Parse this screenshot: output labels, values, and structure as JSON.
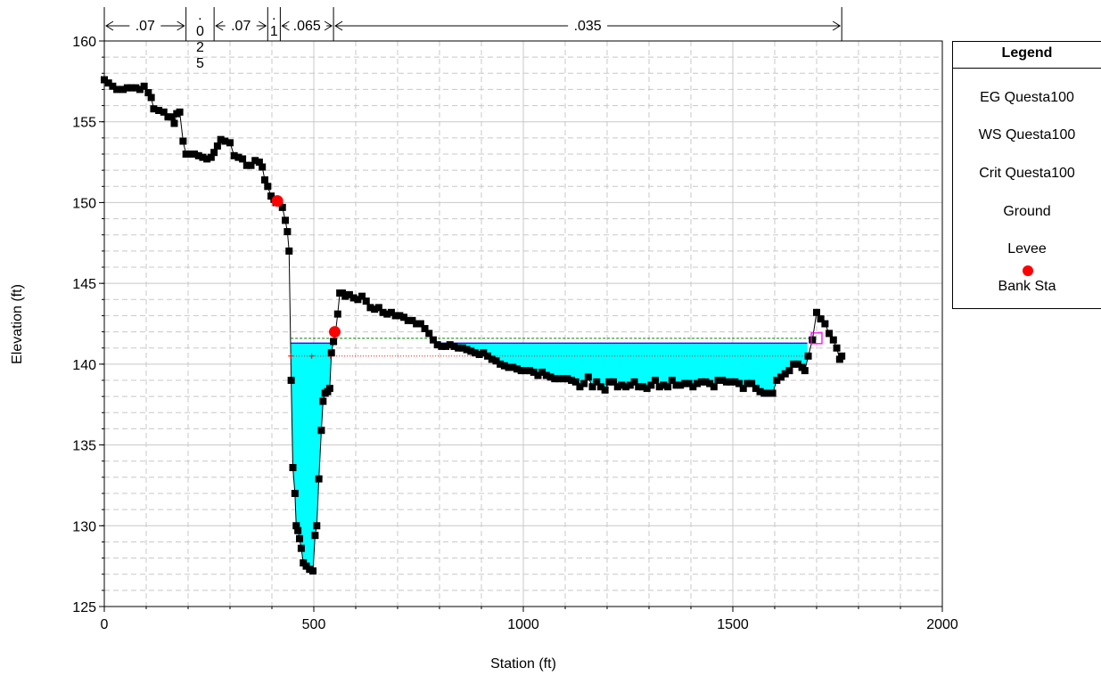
{
  "chart_data": {
    "type": "line",
    "title": "",
    "xlabel": "Station (ft)",
    "ylabel": "Elevation (ft)",
    "xlim": [
      0,
      2000
    ],
    "ylim": [
      125,
      160
    ],
    "x_ticks": [
      "0",
      "500",
      "1000",
      "1500",
      "2000"
    ],
    "y_ticks": [
      "125",
      "130",
      "135",
      "140",
      "145",
      "150",
      "155",
      "160"
    ],
    "grid": true,
    "legend_position": "right",
    "ground": [
      [
        0,
        157.6
      ],
      [
        10,
        157.4
      ],
      [
        20,
        157.2
      ],
      [
        30,
        157.0
      ],
      [
        45,
        157.0
      ],
      [
        55,
        157.1
      ],
      [
        65,
        157.1
      ],
      [
        75,
        157.1
      ],
      [
        85,
        157.0
      ],
      [
        95,
        157.2
      ],
      [
        105,
        156.8
      ],
      [
        112,
        156.5
      ],
      [
        118,
        155.8
      ],
      [
        130,
        155.7
      ],
      [
        142,
        155.6
      ],
      [
        152,
        155.3
      ],
      [
        160,
        155.3
      ],
      [
        167,
        154.9
      ],
      [
        173,
        155.5
      ],
      [
        180,
        155.6
      ],
      [
        188,
        153.8
      ],
      [
        195,
        153.0
      ],
      [
        205,
        153.0
      ],
      [
        215,
        153.0
      ],
      [
        225,
        152.9
      ],
      [
        235,
        152.8
      ],
      [
        245,
        152.7
      ],
      [
        255,
        152.8
      ],
      [
        262,
        153.1
      ],
      [
        270,
        153.5
      ],
      [
        278,
        153.9
      ],
      [
        288,
        153.8
      ],
      [
        300,
        153.7
      ],
      [
        310,
        152.9
      ],
      [
        320,
        152.8
      ],
      [
        330,
        152.7
      ],
      [
        340,
        152.3
      ],
      [
        350,
        152.3
      ],
      [
        360,
        152.6
      ],
      [
        370,
        152.5
      ],
      [
        377,
        152.2
      ],
      [
        383,
        151.4
      ],
      [
        390,
        151.0
      ],
      [
        398,
        150.4
      ],
      [
        405,
        150.2
      ],
      [
        410,
        150.0
      ],
      [
        418,
        150.0
      ],
      [
        425,
        149.7
      ],
      [
        432,
        148.9
      ],
      [
        437,
        148.2
      ],
      [
        441,
        147.0
      ],
      [
        446,
        139.0
      ],
      [
        450,
        133.6
      ],
      [
        455,
        132.0
      ],
      [
        458,
        130.0
      ],
      [
        462,
        129.7
      ],
      [
        466,
        129.2
      ],
      [
        470,
        128.6
      ],
      [
        475,
        127.7
      ],
      [
        482,
        127.5
      ],
      [
        490,
        127.3
      ],
      [
        498,
        127.2
      ],
      [
        503,
        129.4
      ],
      [
        507,
        130.0
      ],
      [
        512,
        132.9
      ],
      [
        518,
        135.9
      ],
      [
        522,
        137.7
      ],
      [
        527,
        138.2
      ],
      [
        533,
        138.3
      ],
      [
        538,
        138.5
      ],
      [
        542,
        140.7
      ],
      [
        547,
        141.4
      ],
      [
        552,
        142.0
      ],
      [
        557,
        143.1
      ],
      [
        562,
        144.4
      ],
      [
        568,
        144.4
      ],
      [
        575,
        144.2
      ],
      [
        585,
        144.3
      ],
      [
        595,
        144.1
      ],
      [
        605,
        144.0
      ],
      [
        615,
        144.2
      ],
      [
        625,
        143.9
      ],
      [
        635,
        143.5
      ],
      [
        645,
        143.4
      ],
      [
        655,
        143.5
      ],
      [
        665,
        143.2
      ],
      [
        675,
        143.1
      ],
      [
        685,
        143.2
      ],
      [
        695,
        143.0
      ],
      [
        705,
        143.0
      ],
      [
        715,
        142.9
      ],
      [
        725,
        142.7
      ],
      [
        735,
        142.7
      ],
      [
        745,
        142.5
      ],
      [
        755,
        142.5
      ],
      [
        765,
        142.2
      ],
      [
        775,
        141.9
      ],
      [
        785,
        141.5
      ],
      [
        795,
        141.2
      ],
      [
        805,
        141.1
      ],
      [
        815,
        141.1
      ],
      [
        825,
        141.2
      ],
      [
        835,
        141.1
      ],
      [
        845,
        141.0
      ],
      [
        855,
        141.0
      ],
      [
        865,
        140.9
      ],
      [
        875,
        140.8
      ],
      [
        885,
        140.7
      ],
      [
        895,
        140.6
      ],
      [
        905,
        140.7
      ],
      [
        915,
        140.5
      ],
      [
        925,
        140.3
      ],
      [
        935,
        140.2
      ],
      [
        945,
        140.0
      ],
      [
        955,
        139.9
      ],
      [
        965,
        139.8
      ],
      [
        975,
        139.8
      ],
      [
        985,
        139.7
      ],
      [
        995,
        139.6
      ],
      [
        1005,
        139.6
      ],
      [
        1015,
        139.6
      ],
      [
        1025,
        139.5
      ],
      [
        1035,
        139.3
      ],
      [
        1045,
        139.5
      ],
      [
        1055,
        139.3
      ],
      [
        1065,
        139.2
      ],
      [
        1075,
        139.1
      ],
      [
        1085,
        139.1
      ],
      [
        1095,
        139.1
      ],
      [
        1105,
        139.1
      ],
      [
        1115,
        139.0
      ],
      [
        1125,
        138.9
      ],
      [
        1135,
        138.6
      ],
      [
        1145,
        138.8
      ],
      [
        1155,
        139.2
      ],
      [
        1165,
        138.6
      ],
      [
        1175,
        138.9
      ],
      [
        1185,
        138.6
      ],
      [
        1195,
        138.4
      ],
      [
        1205,
        138.9
      ],
      [
        1215,
        138.9
      ],
      [
        1225,
        138.6
      ],
      [
        1235,
        138.7
      ],
      [
        1245,
        138.6
      ],
      [
        1255,
        138.7
      ],
      [
        1265,
        138.9
      ],
      [
        1275,
        138.6
      ],
      [
        1285,
        138.6
      ],
      [
        1295,
        138.5
      ],
      [
        1305,
        138.7
      ],
      [
        1315,
        139.0
      ],
      [
        1325,
        138.6
      ],
      [
        1335,
        138.7
      ],
      [
        1345,
        138.6
      ],
      [
        1355,
        139.0
      ],
      [
        1365,
        138.7
      ],
      [
        1375,
        138.7
      ],
      [
        1385,
        138.8
      ],
      [
        1395,
        138.8
      ],
      [
        1405,
        138.6
      ],
      [
        1415,
        138.8
      ],
      [
        1425,
        138.9
      ],
      [
        1435,
        138.9
      ],
      [
        1445,
        138.8
      ],
      [
        1455,
        138.6
      ],
      [
        1465,
        139.0
      ],
      [
        1475,
        139.0
      ],
      [
        1485,
        138.9
      ],
      [
        1495,
        138.9
      ],
      [
        1505,
        138.9
      ],
      [
        1515,
        138.8
      ],
      [
        1525,
        138.5
      ],
      [
        1535,
        138.8
      ],
      [
        1545,
        138.8
      ],
      [
        1555,
        138.5
      ],
      [
        1565,
        138.3
      ],
      [
        1575,
        138.2
      ],
      [
        1585,
        138.2
      ],
      [
        1595,
        138.2
      ],
      [
        1605,
        139.0
      ],
      [
        1615,
        139.2
      ],
      [
        1625,
        139.4
      ],
      [
        1635,
        139.6
      ],
      [
        1645,
        140.0
      ],
      [
        1655,
        140.0
      ],
      [
        1665,
        139.8
      ],
      [
        1672,
        139.6
      ],
      [
        1680,
        140.5
      ],
      [
        1690,
        141.5
      ],
      [
        1700,
        143.2
      ],
      [
        1710,
        142.8
      ],
      [
        1720,
        142.5
      ],
      [
        1730,
        141.9
      ],
      [
        1740,
        141.5
      ],
      [
        1748,
        141.0
      ],
      [
        1755,
        140.3
      ],
      [
        1760,
        140.5
      ]
    ],
    "water_surface": {
      "name": "WS Questa100",
      "elevation": 141.3,
      "wetted_reaches": [
        [
          445,
          547
        ],
        [
          795,
          1678
        ]
      ]
    },
    "energy_grade": {
      "name": "EG Questa100",
      "elevation": 141.6,
      "x_range": [
        445,
        1700
      ]
    },
    "critical": {
      "name": "Crit Questa100",
      "elevation": 140.5,
      "x_range": [
        445,
        1678
      ],
      "markers": [
        [
          445,
          140.5
        ],
        [
          495,
          140.5
        ],
        [
          540,
          140.5
        ],
        [
          910,
          140.5
        ],
        [
          1678,
          140.5
        ]
      ]
    },
    "bank_stations": [
      [
        413,
        150.1
      ],
      [
        550,
        142.0
      ]
    ],
    "levee": [
      [
        1700,
        141.6
      ]
    ],
    "manning_n": [
      {
        "label": ".07",
        "from": 0,
        "to": 195
      },
      {
        "label": ".025",
        "from": 195,
        "to": 262
      },
      {
        "label": ".07",
        "from": 262,
        "to": 390
      },
      {
        "label": ".1",
        "from": 390,
        "to": 420
      },
      {
        "label": ".065",
        "from": 420,
        "to": 547
      },
      {
        "label": ".035",
        "from": 547,
        "to": 1760
      }
    ],
    "colors": {
      "water_fill": "#00ffff",
      "ws_line": "#0000ff",
      "eg_line": "#008000",
      "crit_line": "#ff0000",
      "ground": "#000000",
      "levee": "#ff00ff",
      "bank": "#ff0000"
    }
  },
  "legend": {
    "title": "Legend",
    "entries": [
      {
        "key": "eg",
        "label": "EG Questa100"
      },
      {
        "key": "ws",
        "label": "WS Questa100"
      },
      {
        "key": "crit",
        "label": "Crit Questa100"
      },
      {
        "key": "ground",
        "label": "Ground"
      },
      {
        "key": "levee",
        "label": "Levee"
      },
      {
        "key": "bank",
        "label": "Bank Sta"
      }
    ]
  }
}
